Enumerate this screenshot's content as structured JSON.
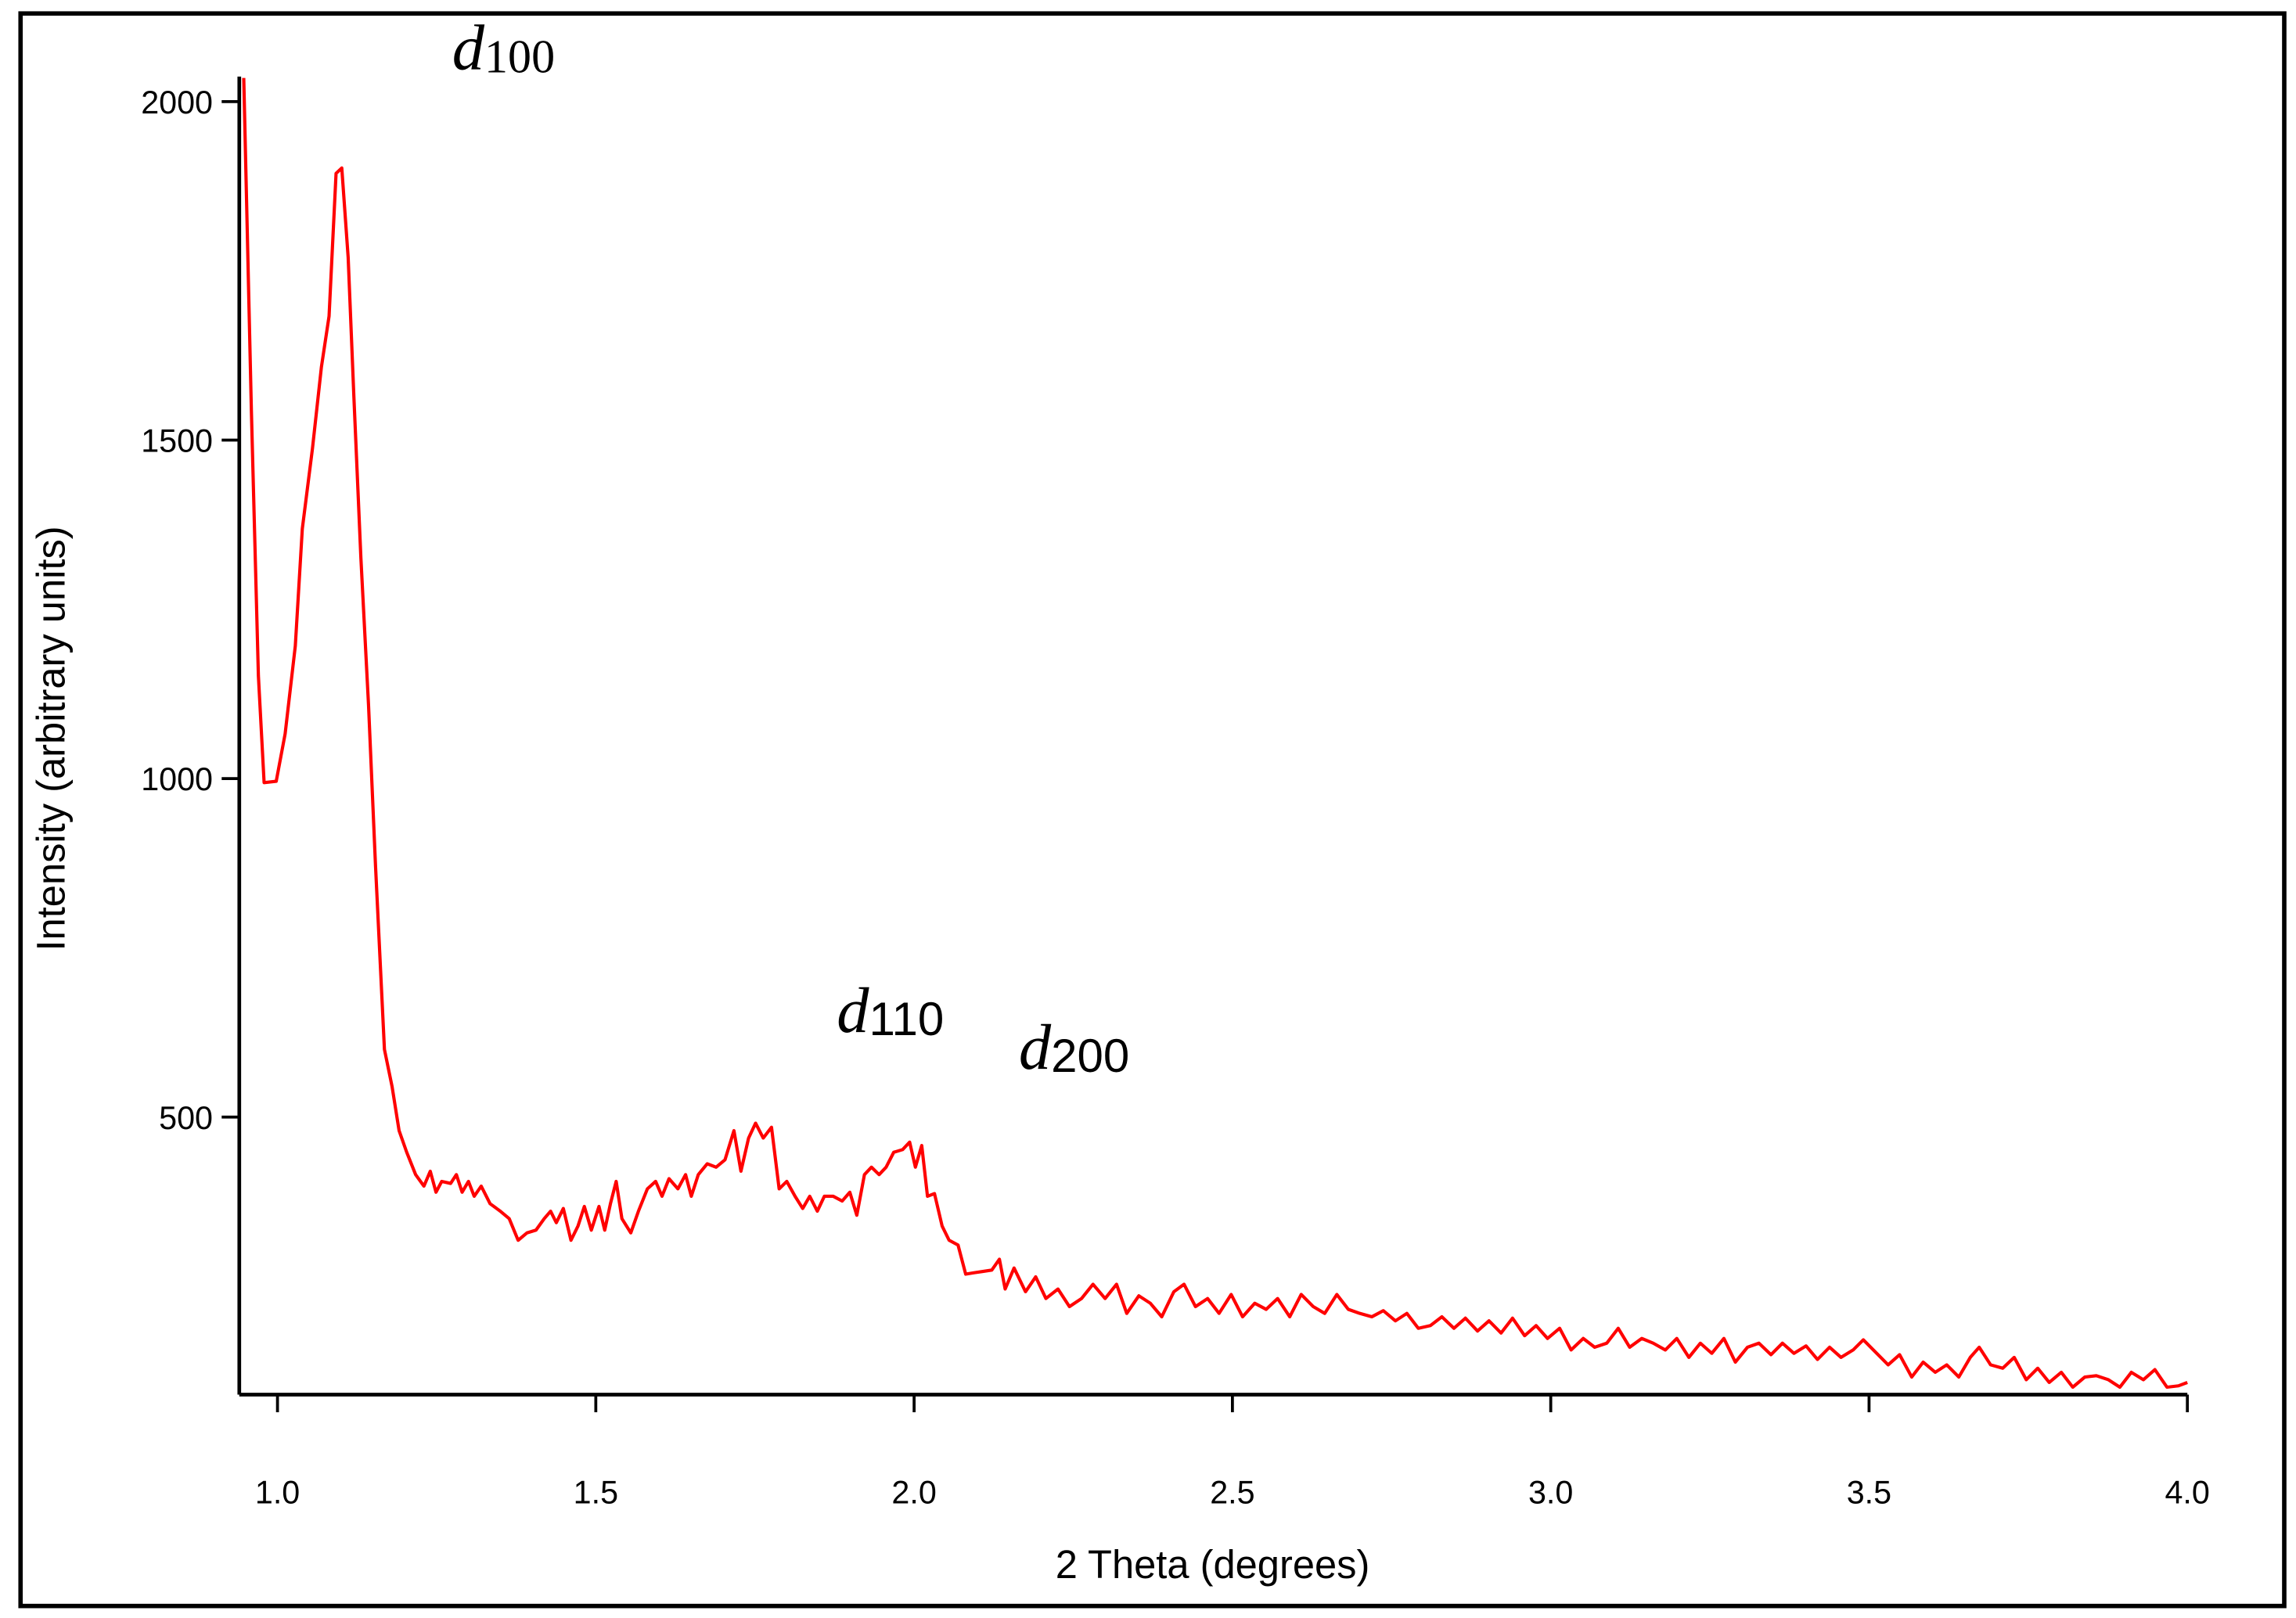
{
  "chart_data": {
    "type": "line",
    "xlabel": "2 Theta (degrees)",
    "ylabel": "Intensity (arbitrary units)",
    "color": "#ff0000",
    "annotations": [
      {
        "text": "d",
        "sub": "100"
      },
      {
        "text": "d",
        "sub": "110"
      },
      {
        "text": "d",
        "sub": "200"
      }
    ],
    "xlim": [
      0.94,
      4.0
    ],
    "ylim": [
      90,
      2037
    ],
    "xticks": [
      {
        "value": 1,
        "label": "1.0"
      },
      1.5,
      {
        "value": 2,
        "label": "2.0"
      },
      2.5,
      {
        "value": 3,
        "label": "3.0"
      },
      3.5,
      {
        "value": 4,
        "label": "4.0"
      }
    ],
    "yticks": [
      500,
      1000,
      1500,
      2000
    ],
    "x": [
      0.947,
      0.959,
      0.97,
      0.979,
      0.998,
      1.012,
      1.028,
      1.039,
      1.055,
      1.069,
      1.081,
      1.092,
      1.101,
      1.111,
      1.12,
      1.131,
      1.143,
      1.154,
      1.168,
      1.18,
      1.191,
      1.203,
      1.217,
      1.23,
      1.24,
      1.249,
      1.258,
      1.272,
      1.281,
      1.29,
      1.3,
      1.309,
      1.32,
      1.334,
      1.35,
      1.364,
      1.378,
      1.392,
      1.406,
      1.419,
      1.429,
      1.438,
      1.449,
      1.461,
      1.472,
      1.482,
      1.493,
      1.505,
      1.514,
      1.523,
      1.532,
      1.541,
      1.555,
      1.567,
      1.581,
      1.594,
      1.604,
      1.615,
      1.629,
      1.641,
      1.65,
      1.661,
      1.675,
      1.689,
      1.703,
      1.717,
      1.728,
      1.74,
      1.751,
      1.763,
      1.776,
      1.788,
      1.8,
      1.813,
      1.825,
      1.836,
      1.848,
      1.859,
      1.873,
      1.887,
      1.899,
      1.91,
      1.922,
      1.933,
      1.945,
      1.956,
      1.968,
      1.982,
      1.993,
      2.002,
      2.012,
      2.021,
      2.032,
      2.044,
      2.055,
      2.069,
      2.081,
      2.094,
      2.108,
      2.122,
      2.134,
      2.143,
      2.157,
      2.175,
      2.191,
      2.207,
      2.226,
      2.244,
      2.263,
      2.281,
      2.3,
      2.318,
      2.334,
      2.353,
      2.371,
      2.389,
      2.408,
      2.424,
      2.442,
      2.461,
      2.479,
      2.498,
      2.516,
      2.535,
      2.553,
      2.571,
      2.59,
      2.608,
      2.627,
      2.645,
      2.664,
      2.682,
      2.7,
      2.719,
      2.737,
      2.756,
      2.774,
      2.792,
      2.811,
      2.829,
      2.848,
      2.866,
      2.885,
      2.903,
      2.922,
      2.94,
      2.959,
      2.977,
      2.995,
      3.014,
      3.032,
      3.051,
      3.069,
      3.088,
      3.106,
      3.124,
      3.143,
      3.161,
      3.18,
      3.198,
      3.217,
      3.235,
      3.253,
      3.272,
      3.29,
      3.309,
      3.327,
      3.346,
      3.364,
      3.382,
      3.401,
      3.419,
      3.438,
      3.456,
      3.475,
      3.491,
      3.512,
      3.53,
      3.548,
      3.567,
      3.585,
      3.604,
      3.622,
      3.641,
      3.659,
      3.673,
      3.691,
      3.71,
      3.728,
      3.747,
      3.765,
      3.783,
      3.802,
      3.82,
      3.839,
      3.857,
      3.876,
      3.894,
      3.912,
      3.931,
      3.949,
      3.968,
      3.986,
      4.0
    ],
    "values": [
      2035,
      1543,
      1152,
      994,
      996,
      1066,
      1196,
      1369,
      1488,
      1608,
      1683,
      1894,
      1902,
      1770,
      1564,
      1326,
      1109,
      871,
      600,
      545,
      480,
      448,
      415,
      398,
      420,
      389,
      405,
      402,
      415,
      389,
      405,
      383,
      398,
      372,
      361,
      350,
      318,
      329,
      333,
      350,
      361,
      344,
      365,
      318,
      339,
      368,
      333,
      368,
      333,
      372,
      405,
      350,
      329,
      361,
      394,
      405,
      383,
      409,
      394,
      415,
      383,
      415,
      431,
      426,
      437,
      480,
      420,
      469,
      491,
      469,
      485,
      394,
      405,
      383,
      365,
      383,
      361,
      383,
      383,
      376,
      389,
      355,
      415,
      426,
      415,
      426,
      448,
      452,
      463,
      426,
      458,
      383,
      387,
      339,
      318,
      311,
      268,
      270,
      272,
      274,
      290,
      246,
      277,
      242,
      264,
      232,
      246,
      220,
      232,
      253,
      232,
      253,
      210,
      236,
      225,
      205,
      242,
      253,
      220,
      232,
      210,
      238,
      205,
      225,
      216,
      232,
      205,
      238,
      220,
      210,
      238,
      216,
      210,
      205,
      214,
      199,
      210,
      188,
      192,
      205,
      188,
      203,
      184,
      199,
      181,
      203,
      177,
      192,
      173,
      188,
      156,
      173,
      160,
      166,
      188,
      160,
      173,
      166,
      156,
      173,
      145,
      166,
      151,
      173,
      138,
      160,
      166,
      149,
      166,
      151,
      162,
      142,
      160,
      145,
      156,
      171,
      151,
      134,
      149,
      116,
      138,
      123,
      134,
      116,
      145,
      160,
      134,
      129,
      145,
      112,
      129,
      108,
      123,
      101,
      116,
      118,
      112,
      101,
      123,
      112,
      127,
      101,
      103,
      108
    ]
  }
}
